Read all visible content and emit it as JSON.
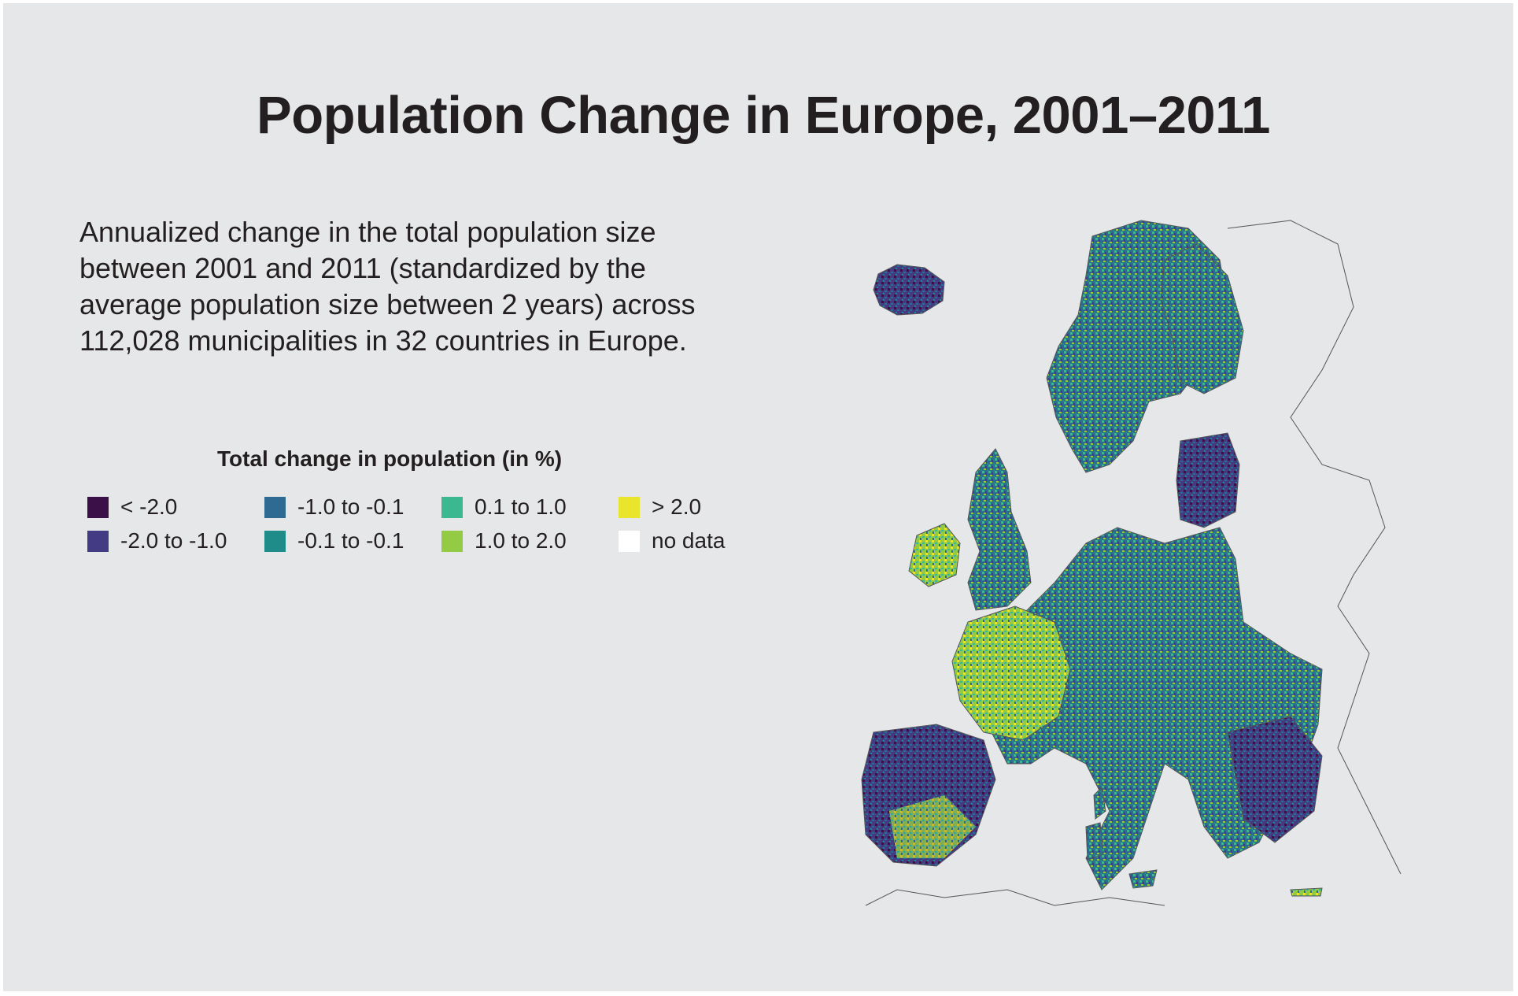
{
  "title": "Population Change in Europe, 2001–2011",
  "description": {
    "lines": [
      "Annualized change in the total population size",
      "between 2001 and 2011 (standardized by the",
      "average population size between 2 years) across",
      "112,028 municipalities in 32 countries in Europe."
    ]
  },
  "legend": {
    "title": "Total change in population (in %)",
    "items": [
      {
        "label": "< -2.0",
        "color": "#3b0f48"
      },
      {
        "label": "-2.0 to -1.0",
        "color": "#433b84"
      },
      {
        "label": "-1.0 to -0.1",
        "color": "#2e6a92"
      },
      {
        "label": "-0.1 to -0.1",
        "color": "#1f8c89"
      },
      {
        "label": "0.1 to 1.0",
        "color": "#3cb891"
      },
      {
        "label": "1.0 to 2.0",
        "color": "#94cb45"
      },
      {
        "label": "> 2.0",
        "color": "#e9e52c"
      },
      {
        "label": "no data",
        "color": "#ffffff"
      }
    ]
  },
  "map": {
    "region": "Europe",
    "background_color": "#e6e7e8",
    "outline_color": "#555555"
  }
}
